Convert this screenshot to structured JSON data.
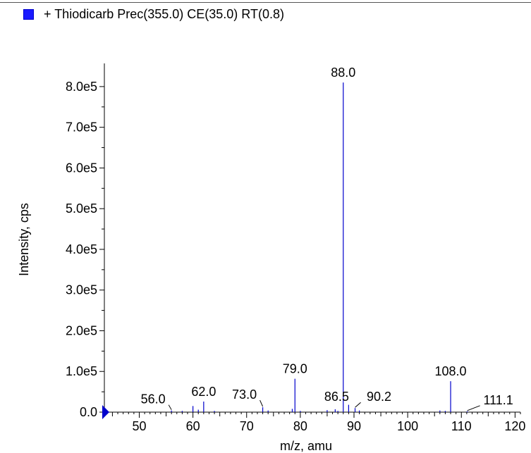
{
  "legend": {
    "label": "+ Thiodicarb Prec(355.0) CE(35.0) RT(0.8)",
    "color": "#1a1aff"
  },
  "chart_data": {
    "type": "bar",
    "title": "",
    "xlabel": "m/z, amu",
    "ylabel": "Intensity, cps",
    "xlim": [
      43.5,
      121
    ],
    "ylim": [
      0,
      850000
    ],
    "x_ticks": [
      50,
      60,
      70,
      80,
      90,
      100,
      110,
      120
    ],
    "y_ticks": [
      {
        "value": 0,
        "label": "0.0"
      },
      {
        "value": 100000,
        "label": "1.0e5"
      },
      {
        "value": 200000,
        "label": "2.0e5"
      },
      {
        "value": 300000,
        "label": "3.0e5"
      },
      {
        "value": 400000,
        "label": "4.0e5"
      },
      {
        "value": 500000,
        "label": "5.0e5"
      },
      {
        "value": 600000,
        "label": "6.0e5"
      },
      {
        "value": 700000,
        "label": "7.0e5"
      },
      {
        "value": 800000,
        "label": "8.0e5"
      }
    ],
    "series": [
      {
        "name": "+ Thiodicarb Prec(355.0) CE(35.0) RT(0.8)",
        "color": "#0000cc",
        "peaks": [
          {
            "x": 44.0,
            "y": 3000
          },
          {
            "x": 56.0,
            "y": 4000
          },
          {
            "x": 58.0,
            "y": 3000
          },
          {
            "x": 60.0,
            "y": 15000
          },
          {
            "x": 61.0,
            "y": 6000
          },
          {
            "x": 62.0,
            "y": 26000
          },
          {
            "x": 64.0,
            "y": 3000
          },
          {
            "x": 73.0,
            "y": 12000
          },
          {
            "x": 74.0,
            "y": 4000
          },
          {
            "x": 78.5,
            "y": 8000
          },
          {
            "x": 79.0,
            "y": 82000
          },
          {
            "x": 80.0,
            "y": 3000
          },
          {
            "x": 85.0,
            "y": 5000
          },
          {
            "x": 86.5,
            "y": 7000
          },
          {
            "x": 87.0,
            "y": 3000
          },
          {
            "x": 88.0,
            "y": 810000
          },
          {
            "x": 89.0,
            "y": 18000
          },
          {
            "x": 90.2,
            "y": 10000
          },
          {
            "x": 91.0,
            "y": 4000
          },
          {
            "x": 106.0,
            "y": 4000
          },
          {
            "x": 107.0,
            "y": 3000
          },
          {
            "x": 108.0,
            "y": 76000
          },
          {
            "x": 111.1,
            "y": 2000
          }
        ]
      }
    ],
    "annotations": [
      {
        "text": "88.0",
        "x": 88.0,
        "y": 810000
      },
      {
        "text": "79.0",
        "x": 79.0,
        "y": 82000
      },
      {
        "text": "108.0",
        "x": 108.0,
        "y": 76000
      },
      {
        "text": "62.0",
        "x": 62.0,
        "y": 26000
      },
      {
        "text": "56.0",
        "x": 56.0,
        "y": 4000
      },
      {
        "text": "73.0",
        "x": 73.0,
        "y": 12000
      },
      {
        "text": "86.5",
        "x": 86.5,
        "y": 7000
      },
      {
        "text": "90.2",
        "x": 90.2,
        "y": 10000
      },
      {
        "text": "111.1",
        "x": 111.1,
        "y": 2000
      }
    ]
  }
}
